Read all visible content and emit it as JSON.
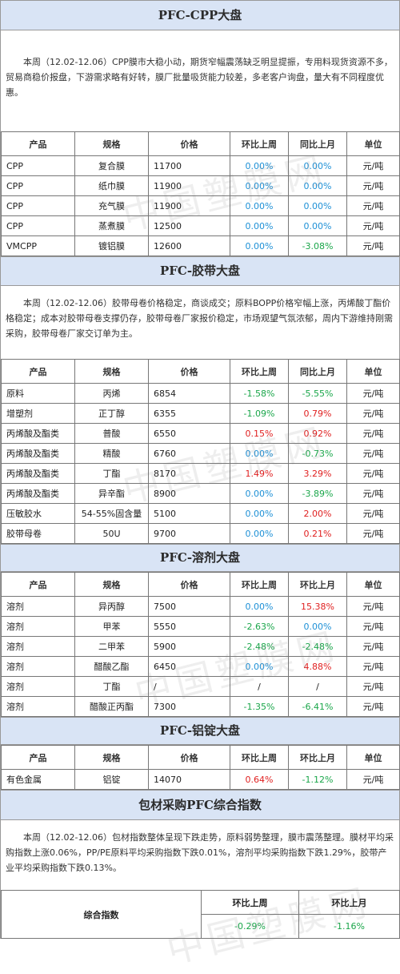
{
  "watermark": "中国塑膜网",
  "headers_main": [
    "产品",
    "规格",
    "价格",
    "环比上周",
    "同比上月",
    "单位"
  ],
  "headers_solvent": [
    "产品",
    "规格",
    "价格",
    "环比上周",
    "环比上月",
    "单位"
  ],
  "cpp": {
    "title": "PFC-CPP大盘",
    "text": "本周（12.02-12.06）CPP膜市大稳小动，期货窄幅震荡缺乏明显提振，专用料现货资源不多，贸易商稳价报盘，下游需求略有好转，膜厂批量吸货能力较差，多老客户询盘，量大有不同程度优惠。",
    "rows": [
      {
        "product": "CPP",
        "spec": "复合膜",
        "price": "11700",
        "wow": "0.00%",
        "mom": "0.00%",
        "unit": "元/吨"
      },
      {
        "product": "CPP",
        "spec": "纸巾膜",
        "price": "11900",
        "wow": "0.00%",
        "mom": "0.00%",
        "unit": "元/吨"
      },
      {
        "product": "CPP",
        "spec": "充气膜",
        "price": "11900",
        "wow": "0.00%",
        "mom": "0.00%",
        "unit": "元/吨"
      },
      {
        "product": "CPP",
        "spec": "蒸煮膜",
        "price": "12500",
        "wow": "0.00%",
        "mom": "0.00%",
        "unit": "元/吨"
      },
      {
        "product": "VMCPP",
        "spec": "镀铝膜",
        "price": "12600",
        "wow": "0.00%",
        "mom": "-3.08%",
        "unit": "元/吨"
      }
    ]
  },
  "tape": {
    "title": "PFC-胶带大盘",
    "text": "本周（12.02-12.06）胶带母卷价格稳定，商谈成交；原料BOPP价格窄幅上涨，丙烯酸丁酯价格稳定；成本对胶带母卷支撑仍存，胶带母卷厂家报价稳定，市场观望气氛浓郁，周内下游维持刚需采购，胶带母卷厂家交订单为主。",
    "rows": [
      {
        "product": "原料",
        "spec": "丙烯",
        "price": "6854",
        "wow": "-1.58%",
        "mom": "-5.55%",
        "unit": "元/吨"
      },
      {
        "product": "增塑剂",
        "spec": "正丁醇",
        "price": "6355",
        "wow": "-1.09%",
        "mom": "0.79%",
        "unit": "元/吨"
      },
      {
        "product": "丙烯酸及酯类",
        "spec": "普酸",
        "price": "6550",
        "wow": "0.15%",
        "mom": "0.92%",
        "unit": "元/吨"
      },
      {
        "product": "丙烯酸及酯类",
        "spec": "精酸",
        "price": "6760",
        "wow": "0.00%",
        "mom": "-0.73%",
        "unit": "元/吨"
      },
      {
        "product": "丙烯酸及酯类",
        "spec": "丁酯",
        "price": "8170",
        "wow": "1.49%",
        "mom": "3.29%",
        "unit": "元/吨"
      },
      {
        "product": "丙烯酸及酯类",
        "spec": "异辛酯",
        "price": "8900",
        "wow": "0.00%",
        "mom": "-3.89%",
        "unit": "元/吨"
      },
      {
        "product": "压敏胶水",
        "spec": "54-55%固含量",
        "price": "5100",
        "wow": "0.00%",
        "mom": "2.00%",
        "unit": "元/吨"
      },
      {
        "product": "胶带母卷",
        "spec": "50U",
        "price": "9700",
        "wow": "0.00%",
        "mom": "0.21%",
        "unit": "元/吨"
      }
    ]
  },
  "solvent": {
    "title": "PFC-溶剂大盘",
    "rows": [
      {
        "product": "溶剂",
        "spec": "异丙醇",
        "price": "7500",
        "wow": "0.00%",
        "mom": "15.38%",
        "unit": "元/吨"
      },
      {
        "product": "溶剂",
        "spec": "甲苯",
        "price": "5550",
        "wow": "-2.63%",
        "mom": "0.00%",
        "unit": "元/吨"
      },
      {
        "product": "溶剂",
        "spec": "二甲苯",
        "price": "5900",
        "wow": "-2.48%",
        "mom": "-2.48%",
        "unit": "元/吨"
      },
      {
        "product": "溶剂",
        "spec": "醋酸乙酯",
        "price": "6450",
        "wow": "0.00%",
        "mom": "4.88%",
        "unit": "元/吨"
      },
      {
        "product": "溶剂",
        "spec": "丁酯",
        "price": "/",
        "wow": "/",
        "mom": "/",
        "unit": "元/吨"
      },
      {
        "product": "溶剂",
        "spec": "醋酸正丙酯",
        "price": "7300",
        "wow": "-1.35%",
        "mom": "-6.41%",
        "unit": "元/吨"
      }
    ]
  },
  "aluminum": {
    "title": "PFC-铝锭大盘",
    "rows": [
      {
        "product": "有色金属",
        "spec": "铝锭",
        "price": "14070",
        "wow": "0.64%",
        "mom": "-1.12%",
        "unit": "元/吨"
      }
    ]
  },
  "composite": {
    "title": "包材采购PFC综合指数",
    "text": "本周（12.02-12.06）包材指数整体呈现下跌走势，原料弱势整理，膜市震荡整理。膜材平均采购指数上涨0.06%，PP/PE原料平均采购指数下跌0.01%，溶剂平均采购指数下跌1.29%，胶带产业平均采购指数下跌0.13%。",
    "label": "综合指数",
    "h_wow": "环比上周",
    "h_mom": "环比上月",
    "wow": "-0.29%",
    "mom": "-1.16%"
  }
}
